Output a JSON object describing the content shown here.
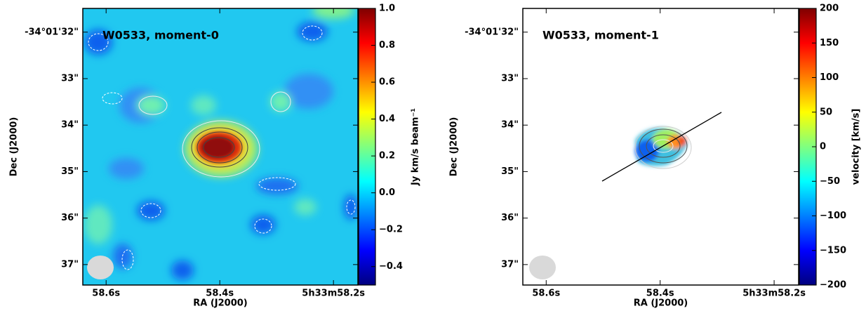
{
  "chart_data": [
    {
      "type": "map",
      "title": "W0533, moment-0",
      "xlabel": "RA (J2000)",
      "ylabel": "Dec (J2000)",
      "xlim": [
        58.641,
        58.157
      ],
      "xticks": [
        {
          "value": 58.6,
          "label": "58.6s"
        },
        {
          "value": 58.4,
          "label": "58.4s"
        },
        {
          "value": 58.2,
          "label": "5h33m58.2s"
        }
      ],
      "ylim": [
        37.44,
        31.49
      ],
      "yticks": [
        {
          "value": 32,
          "label": "-34°01'32\""
        },
        {
          "value": 33,
          "label": "33\""
        },
        {
          "value": 34,
          "label": "34\""
        },
        {
          "value": 35,
          "label": "35\""
        },
        {
          "value": 36,
          "label": "36\""
        },
        {
          "value": 37,
          "label": "37\""
        }
      ],
      "colorbar": {
        "label": "Jy km/s beam⁻¹",
        "colormap": "jet",
        "lim": [
          -0.5,
          1.0
        ],
        "ticks": [
          {
            "value": -0.4,
            "label": "−0.4"
          },
          {
            "value": -0.2,
            "label": "−0.2"
          },
          {
            "value": 0,
            "label": "0.0"
          },
          0.2,
          0.4,
          0.6,
          0.8,
          {
            "value": 1,
            "label": "1.0"
          }
        ]
      }
    },
    {
      "type": "map",
      "title": "W0533, moment-1",
      "xlabel": "RA (J2000)",
      "ylabel": "Dec (J2000)",
      "xlim": [
        58.641,
        58.157
      ],
      "xticks": [
        {
          "value": 58.6,
          "label": "58.6s"
        },
        {
          "value": 58.4,
          "label": "58.4s"
        },
        {
          "value": 58.2,
          "label": "5h33m58.2s"
        }
      ],
      "ylim": [
        37.44,
        31.49
      ],
      "yticks": [
        {
          "value": 32,
          "label": "-34°01'32\""
        },
        {
          "value": 33,
          "label": "33\""
        },
        {
          "value": 34,
          "label": "34\""
        },
        {
          "value": 35,
          "label": "35\""
        },
        {
          "value": 36,
          "label": "36\""
        },
        {
          "value": 37,
          "label": "37\""
        }
      ],
      "colorbar": {
        "label": "velocity [km/s]",
        "colormap": "jet",
        "lim": [
          -200,
          200
        ],
        "ticks": [
          {
            "value": -200,
            "label": "−200"
          },
          {
            "value": -150,
            "label": "−150"
          },
          {
            "value": -100,
            "label": "−100"
          },
          {
            "value": -50,
            "label": "−50"
          },
          0,
          50,
          100,
          150,
          200
        ]
      }
    }
  ]
}
